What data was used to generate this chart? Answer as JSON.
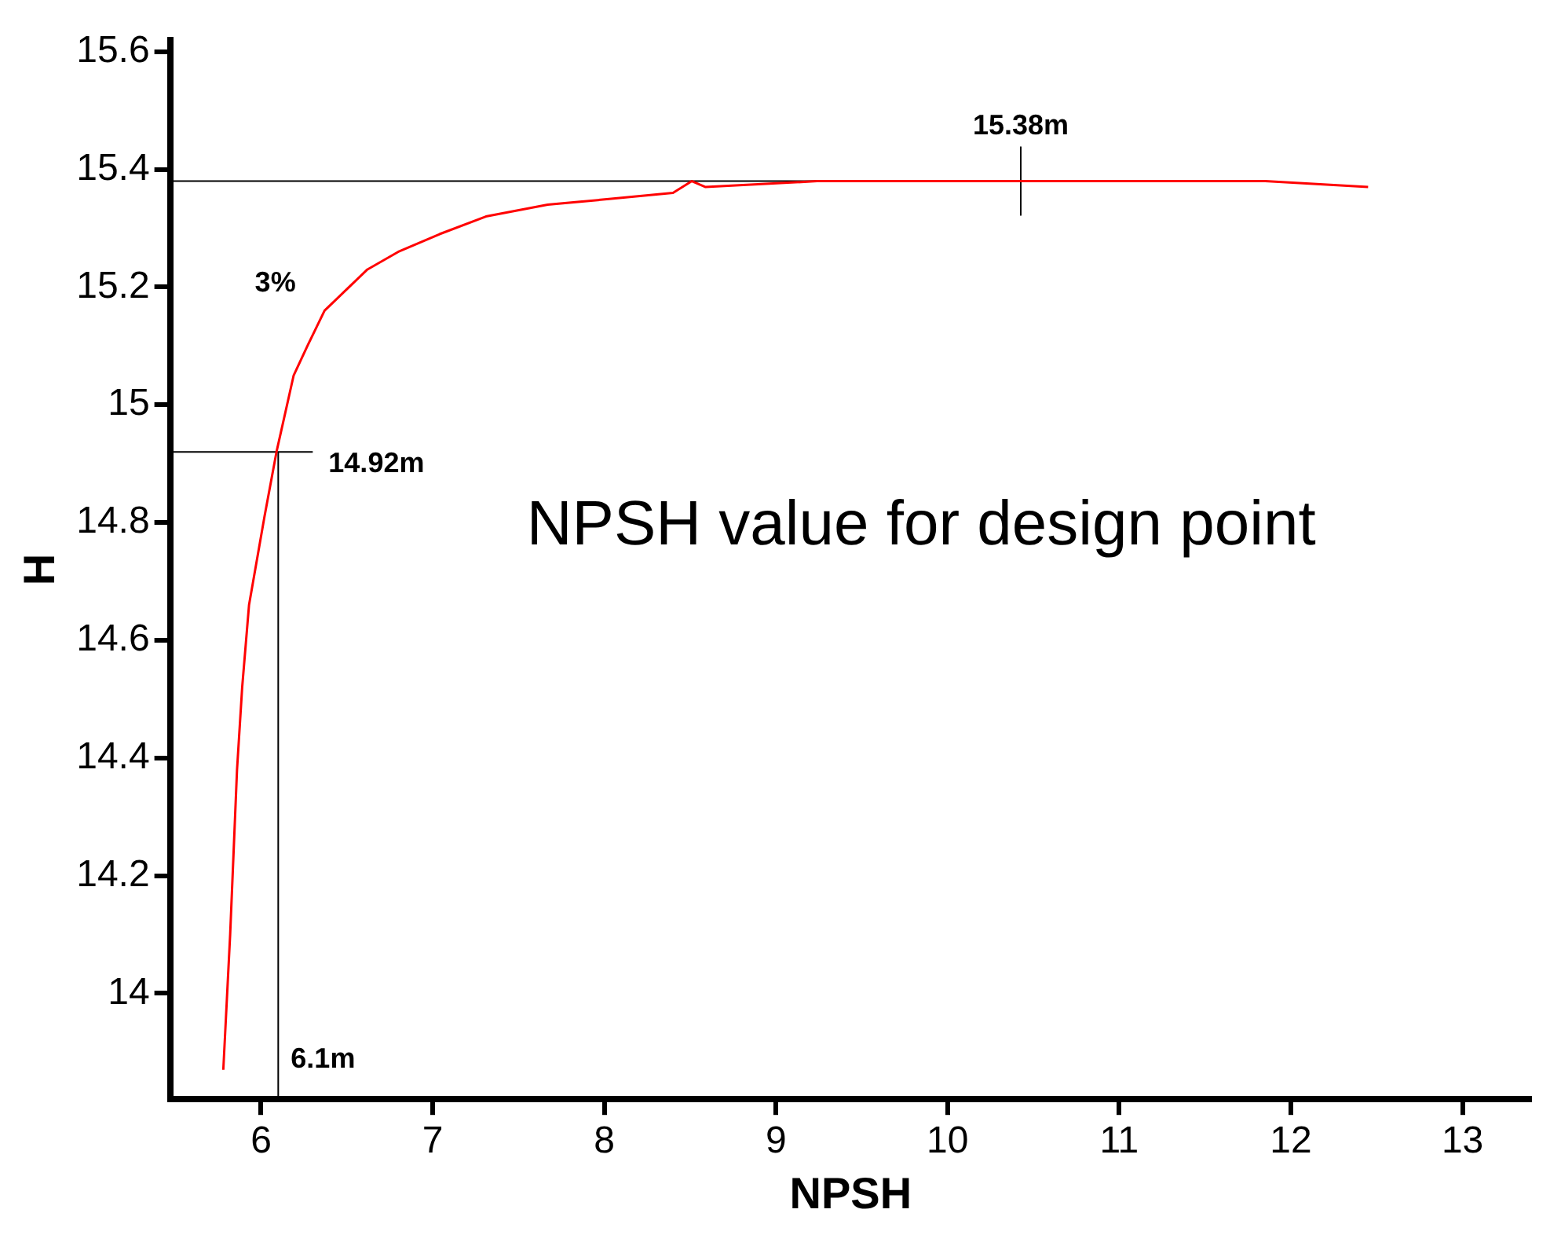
{
  "chart_data": {
    "type": "line",
    "xlabel": "NPSH",
    "ylabel": "H",
    "xlim": [
      5.47,
      13.4
    ],
    "xticks": [
      6,
      7,
      8,
      9,
      10,
      11,
      12,
      13
    ],
    "ylim": [
      13.82,
      15.62
    ],
    "yticks": [
      {
        "value": 14,
        "label": "14"
      },
      {
        "value": 14.2,
        "label": "14.2"
      },
      {
        "value": 14.4,
        "label": "14.4"
      },
      {
        "value": 14.6,
        "label": "14.6"
      },
      {
        "value": 14.8,
        "label": "14.8"
      },
      {
        "value": 15,
        "label": "15"
      },
      {
        "value": 15.2,
        "label": "15.2"
      },
      {
        "value": 15.4,
        "label": "15.4"
      },
      {
        "value": 15.6,
        "label": "15.6"
      }
    ],
    "grid": false,
    "legend": false,
    "marker": "none",
    "line_style": "solid",
    "series": [
      {
        "color": "#ff0000",
        "x": [
          5.78,
          5.82,
          5.84,
          5.86,
          5.89,
          5.93,
          6.02,
          6.09,
          6.19,
          6.27,
          6.37,
          6.62,
          6.8,
          7.04,
          7.31,
          7.67,
          8.04,
          8.4,
          8.51,
          8.59,
          9.24,
          9.58,
          10.42,
          11.22,
          11.57,
          11.85,
          12.45
        ],
        "values": [
          13.87,
          14.1,
          14.24,
          14.38,
          14.52,
          14.66,
          14.81,
          14.92,
          15.05,
          15.1,
          15.16,
          15.23,
          15.26,
          15.29,
          15.32,
          15.34,
          15.35,
          15.36,
          15.38,
          15.37,
          15.38,
          15.38,
          15.38,
          15.38,
          15.38,
          15.38,
          15.37
        ]
      }
    ],
    "ref_lines": [
      {
        "axis": "y",
        "value": 15.38,
        "label": "15.38m",
        "color": "#000000"
      },
      {
        "axis": "y",
        "value": 14.92,
        "label": "14.92m",
        "color": "#000000"
      },
      {
        "axis": "x",
        "value": 6.1,
        "label": "6.1m",
        "color": "#000000"
      }
    ],
    "annotations": [
      "3%",
      "NPSH value for design point"
    ]
  }
}
